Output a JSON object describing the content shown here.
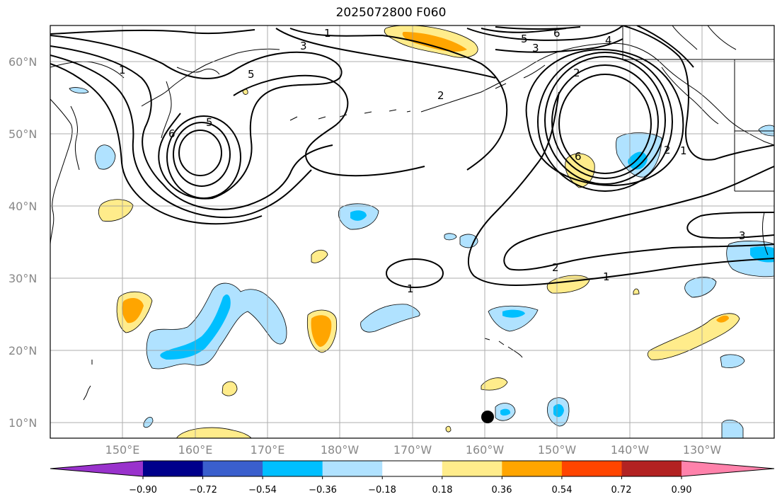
{
  "title": "2025072800 F060",
  "map": {
    "lat_labels": [
      "60°N",
      "50°N",
      "40°N",
      "30°N",
      "20°N",
      "10°N"
    ],
    "lon_labels": [
      "150°E",
      "160°E",
      "170°E",
      "180°W",
      "170°W",
      "160°W",
      "150°W",
      "140°W",
      "130°W"
    ],
    "contour_labels": [
      "1",
      "3",
      "5",
      "6",
      "5",
      "5",
      "6",
      "4",
      "3",
      "2",
      "1",
      "2",
      "1",
      "2",
      "3",
      "2",
      "1",
      "1",
      "6"
    ]
  },
  "colorbar": {
    "colors": [
      "#9932cc",
      "#00008b",
      "#3a5fcd",
      "#00bfff",
      "#b0e2ff",
      "#ffffff",
      "#ffec8b",
      "#ffa500",
      "#ff4500",
      "#b22222",
      "#ff82ab"
    ],
    "tick_labels": [
      "−0.90",
      "−0.72",
      "−0.54",
      "−0.36",
      "−0.18",
      "0.18",
      "0.36",
      "0.54",
      "0.72",
      "0.90"
    ]
  }
}
